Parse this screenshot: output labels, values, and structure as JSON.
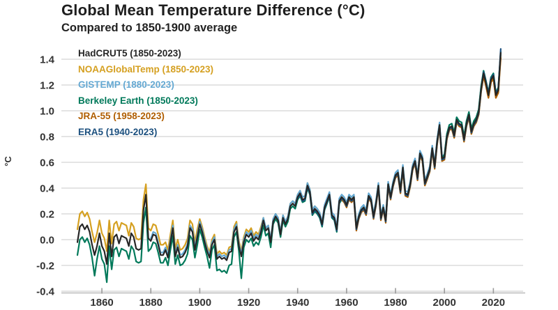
{
  "header": {
    "title": "Global Mean Temperature Difference (°C)",
    "subtitle": "Compared to 1850-1900 average"
  },
  "chart_data": {
    "type": "line",
    "title": "Global Mean Temperature Difference (°C)",
    "subtitle": "Compared to 1850-1900 average",
    "xlabel": "",
    "ylabel": "°C",
    "ylim": [
      -0.45,
      1.5
    ],
    "xlim": [
      1850,
      2023
    ],
    "grid": "horizontal",
    "legend_position": "top-left-inside",
    "ytick_labels": [
      "1.4",
      "1.2",
      "1.0",
      "0.8",
      "0.6",
      "0.4",
      "0.2",
      "0.0",
      "-0.2",
      "-0.4"
    ],
    "yticks": [
      1.4,
      1.2,
      1.0,
      0.8,
      0.6,
      0.4,
      0.2,
      0.0,
      -0.2,
      -0.4
    ],
    "xtick_labels": [
      "1860",
      "1880",
      "1900",
      "1920",
      "1940",
      "1960",
      "1980",
      "2000",
      "2020"
    ],
    "xticks": [
      1860,
      1880,
      1900,
      1920,
      1940,
      1960,
      1980,
      2000,
      2020
    ],
    "series": [
      {
        "id": "noaaglobaltemp",
        "label": "NOAAGlobalTemp (1850-2023)",
        "color": "#d5a021",
        "start_year": 1850,
        "end_year": 2023,
        "values": [
          0.08,
          0.2,
          0.22,
          0.18,
          0.21,
          0.16,
          0.06,
          -0.02,
          0.05,
          0.15,
          0.05,
          0.01,
          -0.09,
          0.15,
          -0.03,
          0.12,
          0.14,
          0.07,
          0.13,
          0.12,
          0.11,
          0.03,
          0.13,
          0.1,
          0.01,
          0.0,
          0.01,
          0.31,
          0.43,
          0.09,
          0.07,
          0.12,
          0.11,
          0.04,
          -0.04,
          -0.04,
          -0.02,
          -0.08,
          0.04,
          0.15,
          -0.07,
          0.0,
          -0.08,
          -0.07,
          -0.04,
          0.01,
          0.15,
          0.12,
          -0.02,
          0.08,
          0.16,
          0.1,
          0.02,
          -0.05,
          -0.1,
          0.0,
          0.04,
          -0.11,
          -0.09,
          -0.11,
          -0.1,
          -0.12,
          -0.06,
          -0.05,
          0.1,
          0.14,
          -0.01,
          -0.09,
          0.02,
          0.08,
          0.06,
          0.09,
          0.03,
          0.06,
          0.04,
          0.1,
          0.17,
          0.09,
          0.11,
          0.0,
          0.16,
          0.2,
          0.17,
          0.06,
          0.19,
          0.14,
          0.18,
          0.28,
          0.3,
          0.28,
          0.35,
          0.38,
          0.33,
          0.34,
          0.44,
          0.39,
          0.23,
          0.26,
          0.24,
          0.21,
          0.12,
          0.25,
          0.3,
          0.35,
          0.19,
          0.17,
          0.08,
          0.3,
          0.33,
          0.31,
          0.27,
          0.33,
          0.31,
          0.33,
          0.09,
          0.18,
          0.23,
          0.25,
          0.21,
          0.34,
          0.31,
          0.18,
          0.28,
          0.42,
          0.17,
          0.25,
          0.15,
          0.43,
          0.33,
          0.43,
          0.48,
          0.5,
          0.36,
          0.54,
          0.34,
          0.33,
          0.41,
          0.54,
          0.59,
          0.46,
          0.65,
          0.61,
          0.42,
          0.47,
          0.53,
          0.69,
          0.55,
          0.74,
          0.87,
          0.61,
          0.62,
          0.78,
          0.85,
          0.86,
          0.79,
          0.91,
          0.88,
          0.87,
          0.76,
          0.88,
          0.95,
          0.82,
          0.88,
          0.91,
          0.97,
          1.15,
          1.27,
          1.19,
          1.1,
          1.22,
          1.25,
          1.1,
          1.14,
          1.43
        ]
      },
      {
        "id": "gistemp",
        "label": "GISTEMP (1880-2023)",
        "color": "#64a8d2",
        "start_year": 1880,
        "end_year": 2023,
        "values": [
          0.01,
          0.06,
          0.05,
          -0.02,
          -0.1,
          -0.1,
          -0.06,
          -0.12,
          0.0,
          0.11,
          -0.11,
          -0.04,
          -0.12,
          -0.11,
          -0.08,
          -0.03,
          0.11,
          0.08,
          -0.06,
          0.04,
          0.14,
          0.08,
          0.0,
          -0.07,
          -0.12,
          -0.02,
          0.02,
          -0.13,
          -0.11,
          -0.13,
          -0.12,
          -0.14,
          -0.08,
          -0.07,
          0.08,
          0.12,
          -0.03,
          -0.11,
          0.0,
          0.06,
          0.04,
          0.07,
          0.01,
          0.04,
          0.02,
          0.08,
          0.17,
          0.09,
          0.11,
          0.0,
          0.16,
          0.2,
          0.17,
          0.06,
          0.19,
          0.14,
          0.18,
          0.28,
          0.3,
          0.28,
          0.35,
          0.38,
          0.33,
          0.34,
          0.44,
          0.39,
          0.23,
          0.26,
          0.24,
          0.21,
          0.14,
          0.27,
          0.32,
          0.37,
          0.21,
          0.19,
          0.1,
          0.32,
          0.35,
          0.33,
          0.29,
          0.35,
          0.33,
          0.35,
          0.11,
          0.2,
          0.25,
          0.27,
          0.23,
          0.36,
          0.33,
          0.2,
          0.3,
          0.44,
          0.19,
          0.27,
          0.17,
          0.45,
          0.35,
          0.45,
          0.52,
          0.54,
          0.4,
          0.58,
          0.38,
          0.37,
          0.45,
          0.58,
          0.63,
          0.5,
          0.69,
          0.65,
          0.46,
          0.51,
          0.57,
          0.73,
          0.59,
          0.78,
          0.91,
          0.65,
          0.66,
          0.82,
          0.89,
          0.9,
          0.83,
          0.95,
          0.92,
          0.91,
          0.8,
          0.92,
          0.99,
          0.86,
          0.92,
          0.95,
          1.01,
          1.19,
          1.31,
          1.23,
          1.14,
          1.26,
          1.29,
          1.14,
          1.18,
          1.44
        ]
      },
      {
        "id": "berkeley-earth",
        "label": "Berkeley Earth (1850-2023)",
        "color": "#00795a",
        "start_year": 1850,
        "end_year": 2023,
        "values": [
          -0.12,
          0.0,
          0.02,
          -0.02,
          0.01,
          -0.04,
          -0.14,
          -0.28,
          -0.15,
          -0.05,
          -0.15,
          -0.19,
          -0.33,
          -0.05,
          -0.23,
          -0.08,
          -0.06,
          -0.13,
          -0.07,
          -0.08,
          -0.09,
          -0.15,
          -0.05,
          -0.08,
          -0.17,
          -0.18,
          -0.17,
          0.13,
          0.25,
          -0.09,
          -0.07,
          -0.02,
          -0.03,
          -0.1,
          -0.18,
          -0.18,
          -0.14,
          -0.2,
          -0.08,
          0.03,
          -0.19,
          -0.12,
          -0.2,
          -0.19,
          -0.16,
          -0.11,
          0.03,
          0.0,
          -0.14,
          -0.04,
          0.08,
          0.02,
          -0.06,
          -0.13,
          -0.22,
          -0.08,
          -0.04,
          -0.24,
          -0.23,
          -0.25,
          -0.24,
          -0.26,
          -0.2,
          -0.19,
          0.02,
          0.06,
          -0.09,
          -0.3,
          -0.06,
          0.0,
          -0.02,
          0.01,
          -0.05,
          -0.02,
          -0.04,
          0.02,
          0.11,
          0.03,
          0.05,
          -0.06,
          0.12,
          0.16,
          0.13,
          0.02,
          0.15,
          0.1,
          0.14,
          0.24,
          0.26,
          0.24,
          0.31,
          0.34,
          0.29,
          0.3,
          0.4,
          0.35,
          0.19,
          0.22,
          0.2,
          0.17,
          0.1,
          0.23,
          0.28,
          0.33,
          0.17,
          0.15,
          0.06,
          0.28,
          0.31,
          0.29,
          0.27,
          0.33,
          0.31,
          0.33,
          0.09,
          0.18,
          0.23,
          0.25,
          0.21,
          0.34,
          0.31,
          0.18,
          0.28,
          0.42,
          0.17,
          0.25,
          0.15,
          0.43,
          0.33,
          0.43,
          0.5,
          0.52,
          0.38,
          0.56,
          0.36,
          0.35,
          0.43,
          0.56,
          0.61,
          0.48,
          0.67,
          0.63,
          0.44,
          0.49,
          0.55,
          0.71,
          0.57,
          0.76,
          0.89,
          0.63,
          0.66,
          0.82,
          0.89,
          0.9,
          0.83,
          0.95,
          0.92,
          0.91,
          0.8,
          0.92,
          0.99,
          0.86,
          0.92,
          0.95,
          1.01,
          1.19,
          1.31,
          1.23,
          1.14,
          1.26,
          1.29,
          1.14,
          1.18,
          1.46
        ]
      },
      {
        "id": "jra55",
        "label": "JRA-55 (1958-2023)",
        "color": "#b05e00",
        "start_year": 1958,
        "end_year": 2023,
        "values": [
          0.31,
          0.29,
          0.25,
          0.31,
          0.29,
          0.31,
          0.07,
          0.16,
          0.21,
          0.23,
          0.19,
          0.32,
          0.29,
          0.16,
          0.26,
          0.4,
          0.15,
          0.23,
          0.13,
          0.41,
          0.31,
          0.41,
          0.48,
          0.5,
          0.36,
          0.54,
          0.34,
          0.33,
          0.41,
          0.54,
          0.59,
          0.46,
          0.65,
          0.61,
          0.42,
          0.47,
          0.53,
          0.69,
          0.55,
          0.74,
          0.87,
          0.61,
          0.62,
          0.78,
          0.85,
          0.86,
          0.79,
          0.91,
          0.88,
          0.87,
          0.76,
          0.88,
          0.95,
          0.82,
          0.88,
          0.91,
          0.97,
          1.15,
          1.27,
          1.19,
          1.1,
          1.22,
          1.25,
          1.1,
          1.14,
          1.41
        ]
      },
      {
        "id": "era5",
        "label": "ERA5 (1940-2023)",
        "color": "#1b4f7e",
        "start_year": 1940,
        "end_year": 2023,
        "values": [
          0.32,
          0.35,
          0.3,
          0.31,
          0.41,
          0.36,
          0.2,
          0.23,
          0.21,
          0.18,
          0.11,
          0.24,
          0.29,
          0.34,
          0.18,
          0.16,
          0.07,
          0.29,
          0.32,
          0.3,
          0.26,
          0.32,
          0.3,
          0.32,
          0.08,
          0.17,
          0.22,
          0.24,
          0.2,
          0.33,
          0.3,
          0.17,
          0.27,
          0.41,
          0.16,
          0.24,
          0.14,
          0.42,
          0.32,
          0.42,
          0.49,
          0.51,
          0.37,
          0.55,
          0.35,
          0.34,
          0.42,
          0.55,
          0.6,
          0.47,
          0.66,
          0.62,
          0.43,
          0.48,
          0.54,
          0.7,
          0.56,
          0.75,
          0.88,
          0.62,
          0.63,
          0.79,
          0.86,
          0.87,
          0.8,
          0.92,
          0.89,
          0.88,
          0.77,
          0.89,
          0.96,
          0.83,
          0.89,
          0.92,
          0.98,
          1.16,
          1.3,
          1.22,
          1.13,
          1.25,
          1.28,
          1.13,
          1.17,
          1.48
        ]
      },
      {
        "id": "hadcrut5",
        "label": "HadCRUT5 (1850-2023)",
        "color": "#262626",
        "start_year": 1850,
        "end_year": 2023,
        "values": [
          -0.02,
          0.1,
          0.12,
          0.08,
          0.11,
          0.06,
          -0.04,
          -0.12,
          -0.05,
          0.05,
          -0.05,
          -0.09,
          -0.19,
          0.05,
          -0.13,
          0.02,
          0.04,
          -0.03,
          0.03,
          0.02,
          0.01,
          -0.05,
          0.05,
          0.02,
          -0.07,
          -0.08,
          -0.07,
          0.23,
          0.35,
          0.01,
          -0.01,
          0.04,
          0.03,
          -0.04,
          -0.12,
          -0.12,
          -0.08,
          -0.14,
          -0.02,
          0.09,
          -0.13,
          -0.06,
          -0.14,
          -0.13,
          -0.1,
          -0.05,
          0.09,
          0.06,
          -0.08,
          0.02,
          0.12,
          0.06,
          -0.02,
          -0.09,
          -0.14,
          -0.04,
          0.0,
          -0.15,
          -0.13,
          -0.15,
          -0.14,
          -0.16,
          -0.1,
          -0.09,
          0.06,
          0.1,
          -0.05,
          -0.13,
          -0.02,
          0.04,
          0.02,
          0.05,
          -0.01,
          0.02,
          0.0,
          0.06,
          0.15,
          0.07,
          0.09,
          -0.02,
          0.14,
          0.18,
          0.15,
          0.04,
          0.17,
          0.12,
          0.16,
          0.26,
          0.28,
          0.26,
          0.33,
          0.36,
          0.31,
          0.32,
          0.42,
          0.37,
          0.21,
          0.24,
          0.22,
          0.19,
          0.12,
          0.25,
          0.3,
          0.35,
          0.19,
          0.17,
          0.08,
          0.3,
          0.33,
          0.31,
          0.27,
          0.33,
          0.31,
          0.33,
          0.09,
          0.18,
          0.23,
          0.25,
          0.21,
          0.34,
          0.31,
          0.18,
          0.28,
          0.42,
          0.17,
          0.25,
          0.15,
          0.43,
          0.33,
          0.43,
          0.5,
          0.52,
          0.38,
          0.56,
          0.36,
          0.35,
          0.43,
          0.56,
          0.61,
          0.48,
          0.67,
          0.63,
          0.44,
          0.49,
          0.55,
          0.71,
          0.57,
          0.76,
          0.89,
          0.63,
          0.64,
          0.8,
          0.87,
          0.88,
          0.81,
          0.93,
          0.9,
          0.89,
          0.78,
          0.9,
          0.97,
          0.84,
          0.9,
          0.93,
          0.99,
          1.17,
          1.29,
          1.21,
          1.12,
          1.24,
          1.27,
          1.12,
          1.16,
          1.45
        ]
      }
    ],
    "legend_order": [
      "hadcrut5",
      "noaaglobaltemp",
      "gistemp",
      "berkeley-earth",
      "jra55",
      "era5"
    ],
    "colors": {
      "grid": "#dcdcdc",
      "axis": "#c9c9c9",
      "tick": "#9a9a9a",
      "text": "#333333"
    }
  }
}
